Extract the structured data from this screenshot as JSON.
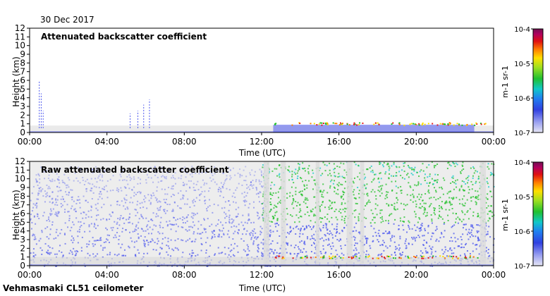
{
  "header": {
    "date": "30 Dec 2017"
  },
  "footer": {
    "instrument": "Vehmasmaki CL51 ceilometer"
  },
  "colors": {
    "background_noise": "#dcdcdc",
    "low_signal": "#4a55ee",
    "mid_signal": "#22c02a",
    "high_signal": "#e61f1f"
  },
  "chart_data": [
    {
      "type": "heatmap",
      "title": "Attenuated backscatter coefficient",
      "xlabel": "Time (UTC)",
      "ylabel": "Height (km)",
      "xticks": [
        "00:00",
        "04:00",
        "08:00",
        "12:00",
        "16:00",
        "20:00",
        "00:00"
      ],
      "xlim_hours": [
        0,
        24
      ],
      "yticks": [
        "0",
        "1",
        "2",
        "3",
        "4",
        "5",
        "6",
        "7",
        "8",
        "9",
        "10",
        "11",
        "12"
      ],
      "ylim": [
        0,
        12
      ],
      "colorbar": {
        "scale": "log",
        "ticks": [
          "10-7",
          "10-6",
          "10-5",
          "10-4"
        ],
        "label": "m-1 sr-1",
        "range": [
          1e-07,
          0.0001
        ]
      }
    },
    {
      "type": "heatmap",
      "title": "Raw attenuated backscatter coefficient",
      "xlabel": "Time (UTC)",
      "ylabel": "Height (km)",
      "xticks": [
        "00:00",
        "04:00",
        "08:00",
        "12:00",
        "16:00",
        "20:00",
        "00:00"
      ],
      "xlim_hours": [
        0,
        24
      ],
      "yticks": [
        "0",
        "1",
        "2",
        "3",
        "4",
        "5",
        "6",
        "7",
        "8",
        "9",
        "10",
        "11",
        "12"
      ],
      "ylim": [
        0,
        12
      ],
      "colorbar": {
        "scale": "log",
        "ticks": [
          "10-7",
          "10-6",
          "10-5",
          "10-4"
        ],
        "label": "m-1 sr-1",
        "range": [
          1e-07,
          0.0001
        ]
      }
    }
  ]
}
